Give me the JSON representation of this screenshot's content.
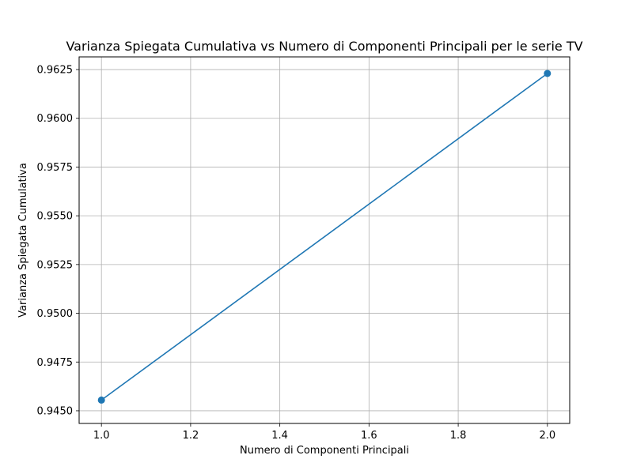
{
  "chart_data": {
    "type": "line",
    "title": "Varianza Spiegata Cumulativa vs Numero di Componenti Principali per le serie TV",
    "xlabel": "Numero di Componenti Principali",
    "ylabel": "Varianza Spiegata Cumulativa",
    "xlim": [
      0.95,
      2.05
    ],
    "ylim": [
      0.94435,
      0.96315
    ],
    "xticks": [
      1.0,
      1.2,
      1.4,
      1.6,
      1.8,
      2.0
    ],
    "xtick_labels": [
      "1.0",
      "1.2",
      "1.4",
      "1.6",
      "1.8",
      "2.0"
    ],
    "yticks": [
      0.945,
      0.9475,
      0.95,
      0.9525,
      0.955,
      0.9575,
      0.96,
      0.9625
    ],
    "ytick_labels": [
      "0.9450",
      "0.9475",
      "0.9500",
      "0.9525",
      "0.9550",
      "0.9575",
      "0.9600",
      "0.9625"
    ],
    "grid": true,
    "series": [
      {
        "x": [
          1,
          2
        ],
        "y": [
          0.94555,
          0.9623
        ],
        "color": "#1f77b4",
        "marker": "circle"
      }
    ]
  }
}
